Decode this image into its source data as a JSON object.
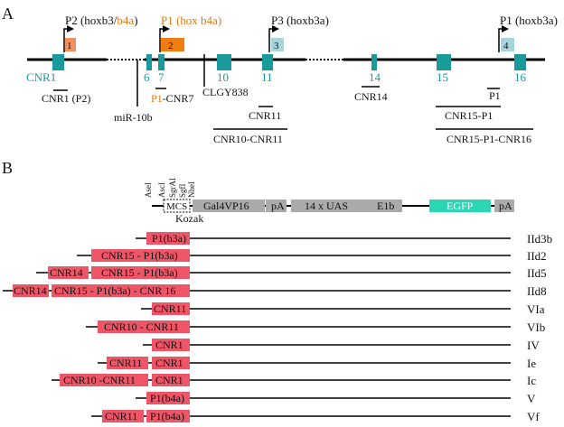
{
  "colors": {
    "exon": "#1a9a9a",
    "promoter_teal": "#a8d4dc",
    "promoter_orange": "#ef7d0f",
    "red_box": "#ee5566",
    "gray_box": "#aaaaaa",
    "egfp": "#2bd6b4",
    "orange_text": "#e07a12",
    "teal_text": "#1a9a9a"
  },
  "panel_a": {
    "letter": "A",
    "promoters": [
      {
        "id": "p2",
        "num": "1",
        "label_plain": "P2 (hoxb3/",
        "label_orange": "b4a",
        "label_tail": ")"
      },
      {
        "id": "p1-b4a",
        "num": "2",
        "label_orange": "P1 (hox b4a)"
      },
      {
        "id": "p3",
        "num": "3",
        "label_plain": "P3 (hoxb3a)"
      },
      {
        "id": "p1-b3a",
        "num": "4",
        "label_plain": "P1 (hoxb3a)"
      }
    ],
    "exon_labels": {
      "cnr1": "CNR1",
      "e6": "6",
      "e7": "7",
      "e10": "10",
      "e11": "11",
      "e14": "14",
      "e15": "15",
      "e16": "16"
    },
    "features": {
      "mir10b": "miR-10b",
      "clgy838": "CLGY838"
    },
    "fragments": {
      "cnr1_p2": "CNR1 (P2)",
      "p1_cnr7_orange": "P1",
      "p1_cnr7_tail": "-CNR7",
      "cnr14": "CNR14",
      "p1": "P1",
      "cnr11": "CNR11",
      "cnr15_p1": "CNR15-P1",
      "cnr10_cnr11": "CNR10-CNR11",
      "cnr15_p1_cnr16": "CNR15-P1-CNR16"
    }
  },
  "panel_b": {
    "letter": "B",
    "sites": [
      "AseI",
      "AscI",
      "SgrAI",
      "SgfI",
      "NheI"
    ],
    "mcs": "MCS",
    "kozak": "Kozak",
    "elements": {
      "gal4": "Gal4VP16",
      "pa1": "pA",
      "uas": "14 x UAS",
      "e1b": "E1b",
      "egfp": "EGFP",
      "pa2": "pA"
    },
    "constructs": [
      {
        "name": "IId3b",
        "boxes": [
          "P1(b3a)"
        ]
      },
      {
        "name": "IId2",
        "boxes": [
          "CNR15 - P1(b3a)"
        ]
      },
      {
        "name": "IId5",
        "boxes": [
          "CNR14",
          "CNR15 - P1(b3a)"
        ]
      },
      {
        "name": "IId8",
        "boxes": [
          "CNR14",
          "CNR15 - P1(b3a) - CNR 16"
        ]
      },
      {
        "name": "VIa",
        "boxes": [
          "CNR11"
        ]
      },
      {
        "name": "VIb",
        "boxes": [
          "CNR10 - CNR11"
        ]
      },
      {
        "name": "IV",
        "boxes": [
          "CNR1"
        ]
      },
      {
        "name": "Ie",
        "boxes": [
          "CNR11",
          "CNR1"
        ]
      },
      {
        "name": "Ic",
        "boxes": [
          "CNR10 -CNR11",
          "CNR1"
        ]
      },
      {
        "name": "V",
        "boxes": [
          "P1(b4a)"
        ]
      },
      {
        "name": "Vf",
        "boxes": [
          "CNR11",
          "P1(b4a)"
        ]
      }
    ]
  }
}
